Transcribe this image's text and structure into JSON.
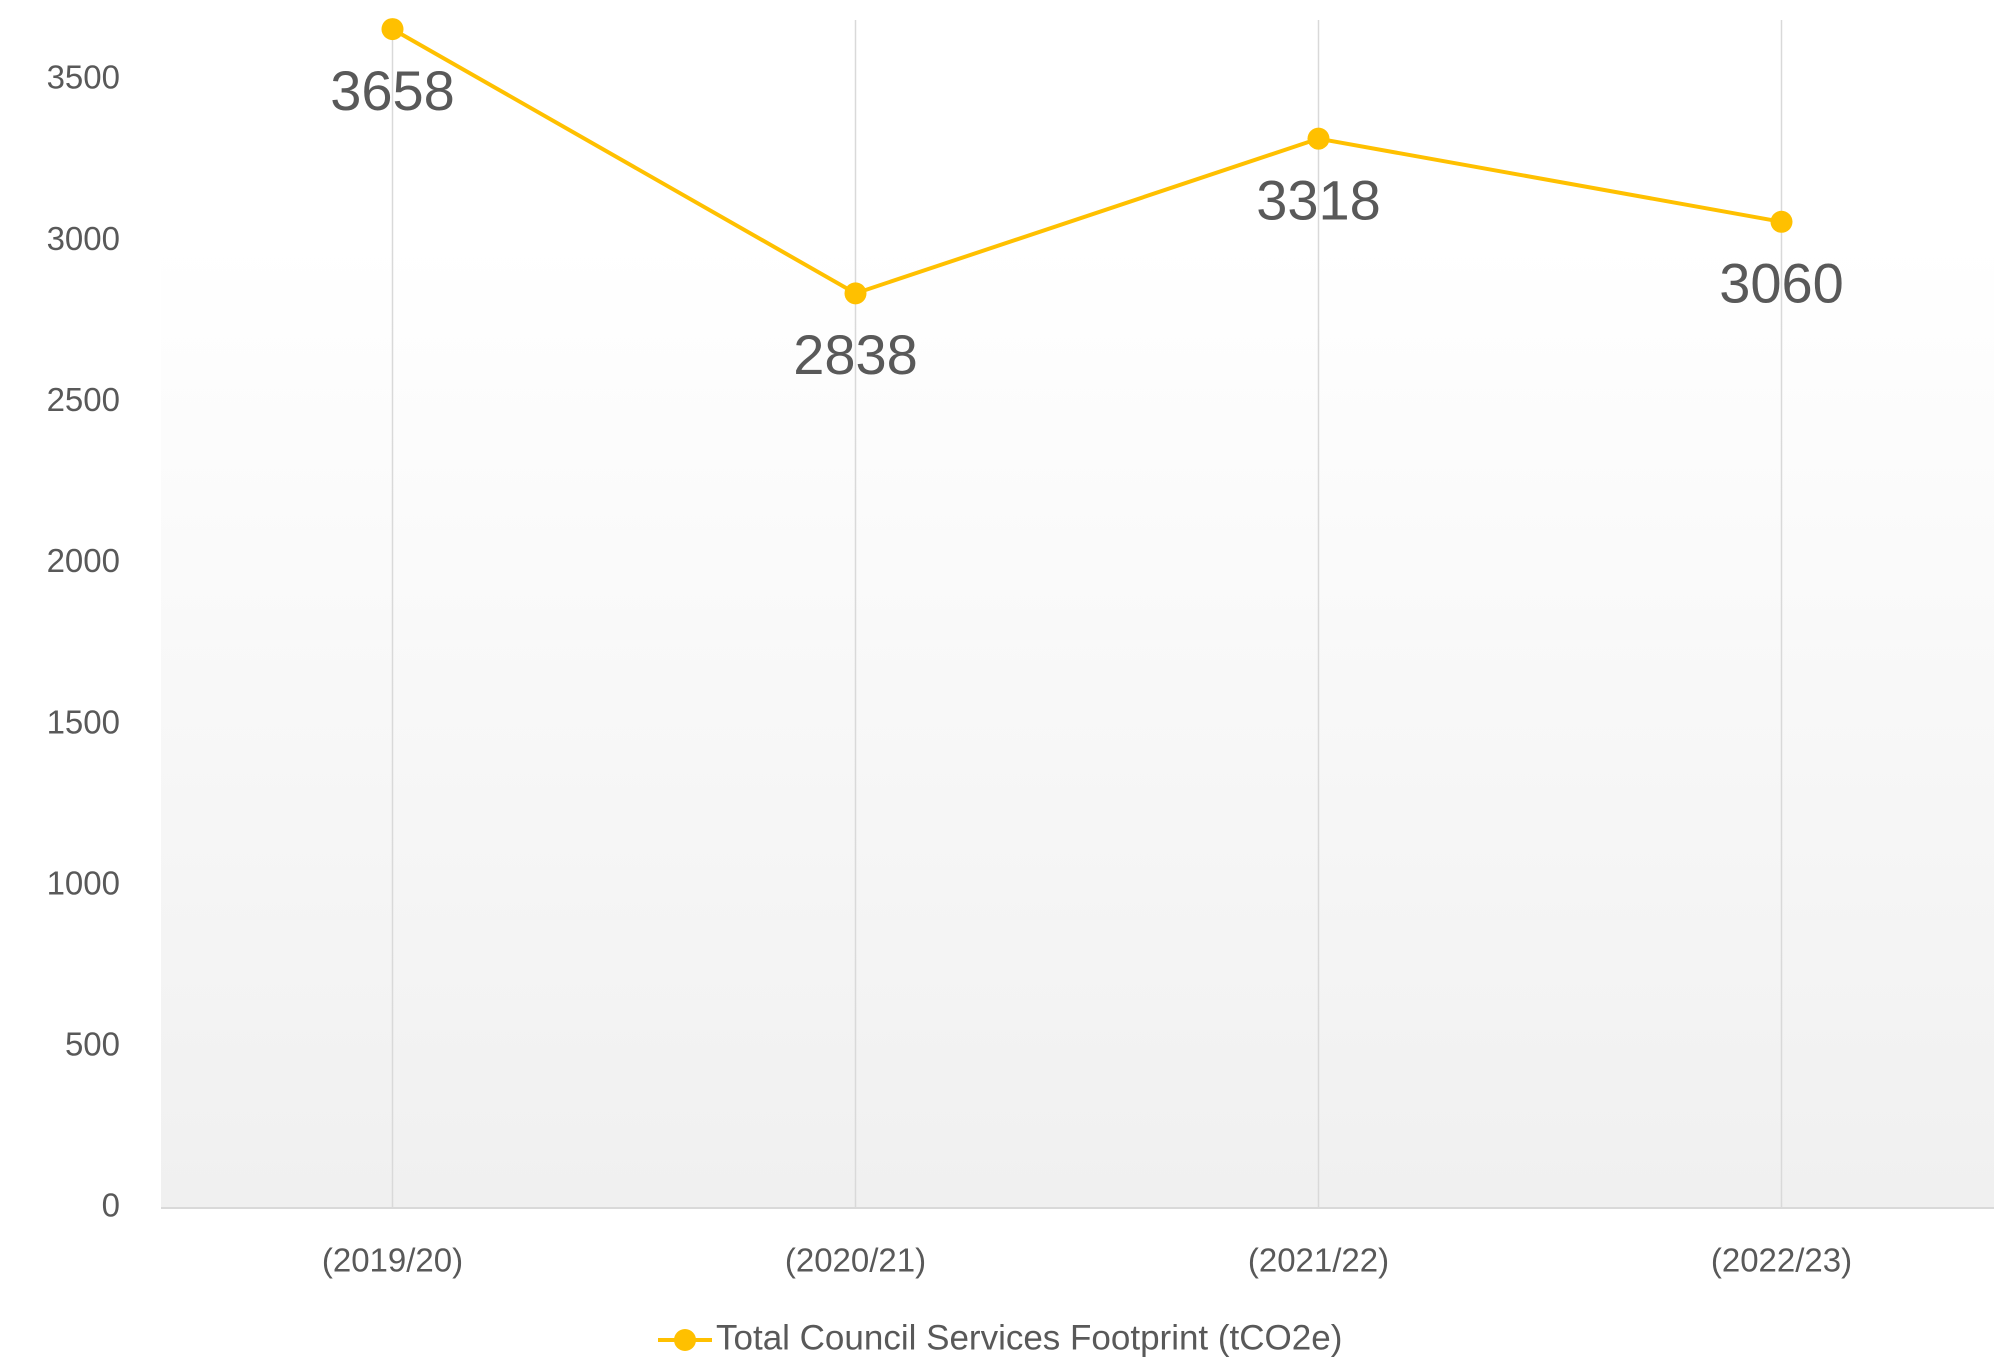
{
  "chart_data": {
    "type": "line",
    "categories": [
      "(2019/20)",
      "(2020/21)",
      "(2021/22)",
      "(2022/23)"
    ],
    "series": [
      {
        "name": "Total Council Services Footprint (tCO2e)",
        "color": "#ffc000",
        "values": [
          3658,
          2838,
          3318,
          3060
        ]
      }
    ],
    "ylim": [
      0,
      3700
    ],
    "yticks": [
      0,
      500,
      1000,
      1500,
      2000,
      2500,
      3000,
      3500
    ],
    "grid": "x",
    "legend": "bottom"
  }
}
